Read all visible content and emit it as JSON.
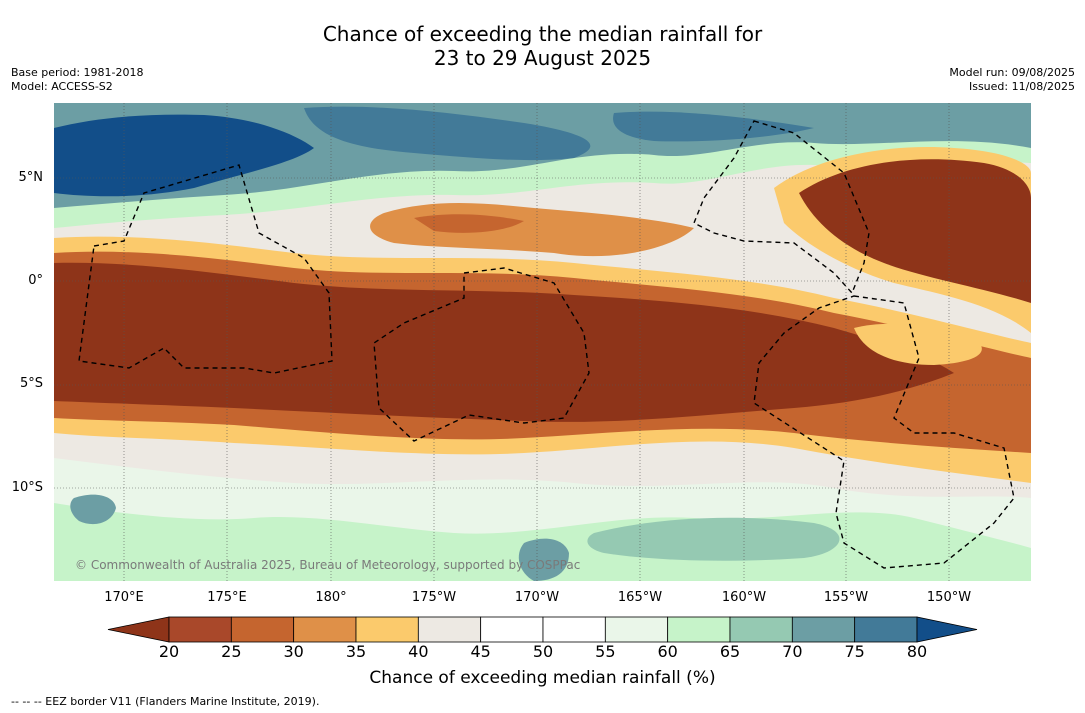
{
  "header": {
    "title_line1": "Chance of exceeding the median rainfall for",
    "title_line2": "23 to 29 August 2025",
    "base_period": "Base period: 1981-2018",
    "model": "Model: ACCESS-S2",
    "model_run": "Model run: 09/08/2025",
    "issued": "Issued: 11/08/2025"
  },
  "map": {
    "credit": "© Commonwealth of Australia 2025, Bureau of Meteorology, supported by COSPPac",
    "lon_ticks": [
      "170°E",
      "175°E",
      "180°",
      "175°W",
      "170°W",
      "165°W",
      "160°W",
      "155°W",
      "150°W"
    ],
    "lat_ticks": [
      "5°N",
      "0°",
      "5°S",
      "10°S"
    ]
  },
  "colorbar": {
    "labels": [
      "20",
      "25",
      "30",
      "35",
      "40",
      "45",
      "50",
      "55",
      "60",
      "65",
      "70",
      "75",
      "80"
    ],
    "colors": [
      "#8e3419",
      "#a9482a",
      "#c5652f",
      "#df9048",
      "#fbca6c",
      "#ede9e3",
      "#ffffff",
      "#ffffff",
      "#eaf6e9",
      "#c6f3c9",
      "#95c9b2",
      "#6c9ea4",
      "#427a98",
      "#124e89"
    ],
    "title": "Chance of exceeding median rainfall (%)"
  },
  "footnote": "--  --  -- EEZ border V11 (Flanders Marine Institute, 2019)."
}
